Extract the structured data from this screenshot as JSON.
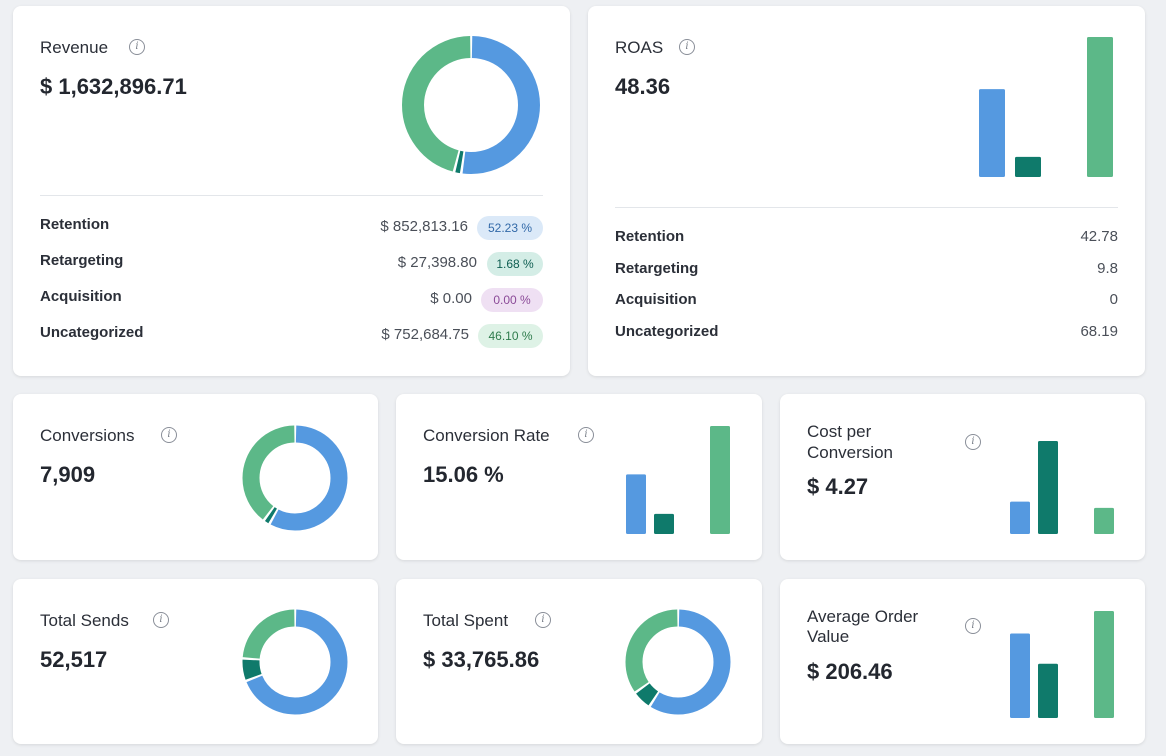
{
  "colors": {
    "blue": "#5599e0",
    "teal": "#0f7a6b",
    "green": "#5cb888",
    "pill_blue_bg": "#dbe9f8",
    "pill_blue_fg": "#3269a8",
    "pill_teal_bg": "#d4ede6",
    "pill_teal_fg": "#0f5e52",
    "pill_purple_bg": "#efe0f3",
    "pill_purple_fg": "#8b4a98",
    "pill_green_bg": "#def2e6",
    "pill_green_fg": "#2f7c4d"
  },
  "revenue": {
    "title": "Revenue",
    "value": "$ 1,632,896.71",
    "rows": [
      {
        "label": "Retention",
        "amount": "$ 852,813.16",
        "pct": "52.23 %"
      },
      {
        "label": "Retargeting",
        "amount": "$ 27,398.80",
        "pct": "1.68 %"
      },
      {
        "label": "Acquisition",
        "amount": "$ 0.00",
        "pct": "0.00 %"
      },
      {
        "label": "Uncategorized",
        "amount": "$ 752,684.75",
        "pct": "46.10 %"
      }
    ],
    "chart_data": {
      "type": "pie",
      "values": [
        52.23,
        1.68,
        0.0,
        46.1
      ],
      "categories": [
        "Retention",
        "Retargeting",
        "Acquisition",
        "Uncategorized"
      ],
      "colors": [
        "#5599e0",
        "#0f7a6b",
        "#c9a0d6",
        "#5cb888"
      ]
    }
  },
  "roas": {
    "title": "ROAS",
    "value": "48.36",
    "rows": [
      {
        "label": "Retention",
        "amount": "42.78"
      },
      {
        "label": "Retargeting",
        "amount": "9.8"
      },
      {
        "label": "Acquisition",
        "amount": "0"
      },
      {
        "label": "Uncategorized",
        "amount": "68.19"
      }
    ],
    "chart_data": {
      "type": "bar",
      "values": [
        42.78,
        9.8,
        0,
        68.19
      ],
      "colors": [
        "#5599e0",
        "#0f7a6b",
        "#c9a0d6",
        "#5cb888"
      ]
    }
  },
  "conversions": {
    "title": "Conversions",
    "value": "7,909",
    "chart_data": {
      "type": "pie",
      "values": [
        58,
        2,
        0,
        40
      ],
      "colors": [
        "#5599e0",
        "#0f7a6b",
        "#c9a0d6",
        "#5cb888"
      ]
    }
  },
  "conversion_rate": {
    "title": "Conversion Rate",
    "value": "15.06 %",
    "chart_data": {
      "type": "bar",
      "values": [
        9.5,
        3.2,
        0,
        17.2
      ],
      "colors": [
        "#5599e0",
        "#0f7a6b",
        "#c9a0d6",
        "#5cb888"
      ]
    }
  },
  "cost_per_conversion": {
    "title_line1": "Cost per",
    "title_line2": "Conversion",
    "value": "$ 4.27",
    "chart_data": {
      "type": "bar",
      "values": [
        3.1,
        8.9,
        0,
        2.5
      ],
      "colors": [
        "#5599e0",
        "#0f7a6b",
        "#c9a0d6",
        "#5cb888"
      ]
    }
  },
  "total_sends": {
    "title": "Total Sends",
    "value": "52,517",
    "chart_data": {
      "type": "pie",
      "values": [
        69,
        7,
        0,
        24
      ],
      "colors": [
        "#5599e0",
        "#0f7a6b",
        "#c9a0d6",
        "#5cb888"
      ]
    }
  },
  "total_spent": {
    "title": "Total Spent",
    "value": "$ 33,765.86",
    "chart_data": {
      "type": "pie",
      "values": [
        59,
        6,
        0,
        35
      ],
      "colors": [
        "#5599e0",
        "#0f7a6b",
        "#c9a0d6",
        "#5cb888"
      ]
    }
  },
  "average_order_value": {
    "title_line1": "Average Order",
    "title_line2": "Value",
    "value": "$ 206.46",
    "chart_data": {
      "type": "bar",
      "values": [
        218,
        140,
        0,
        276
      ],
      "colors": [
        "#5599e0",
        "#0f7a6b",
        "#c9a0d6",
        "#5cb888"
      ]
    }
  }
}
